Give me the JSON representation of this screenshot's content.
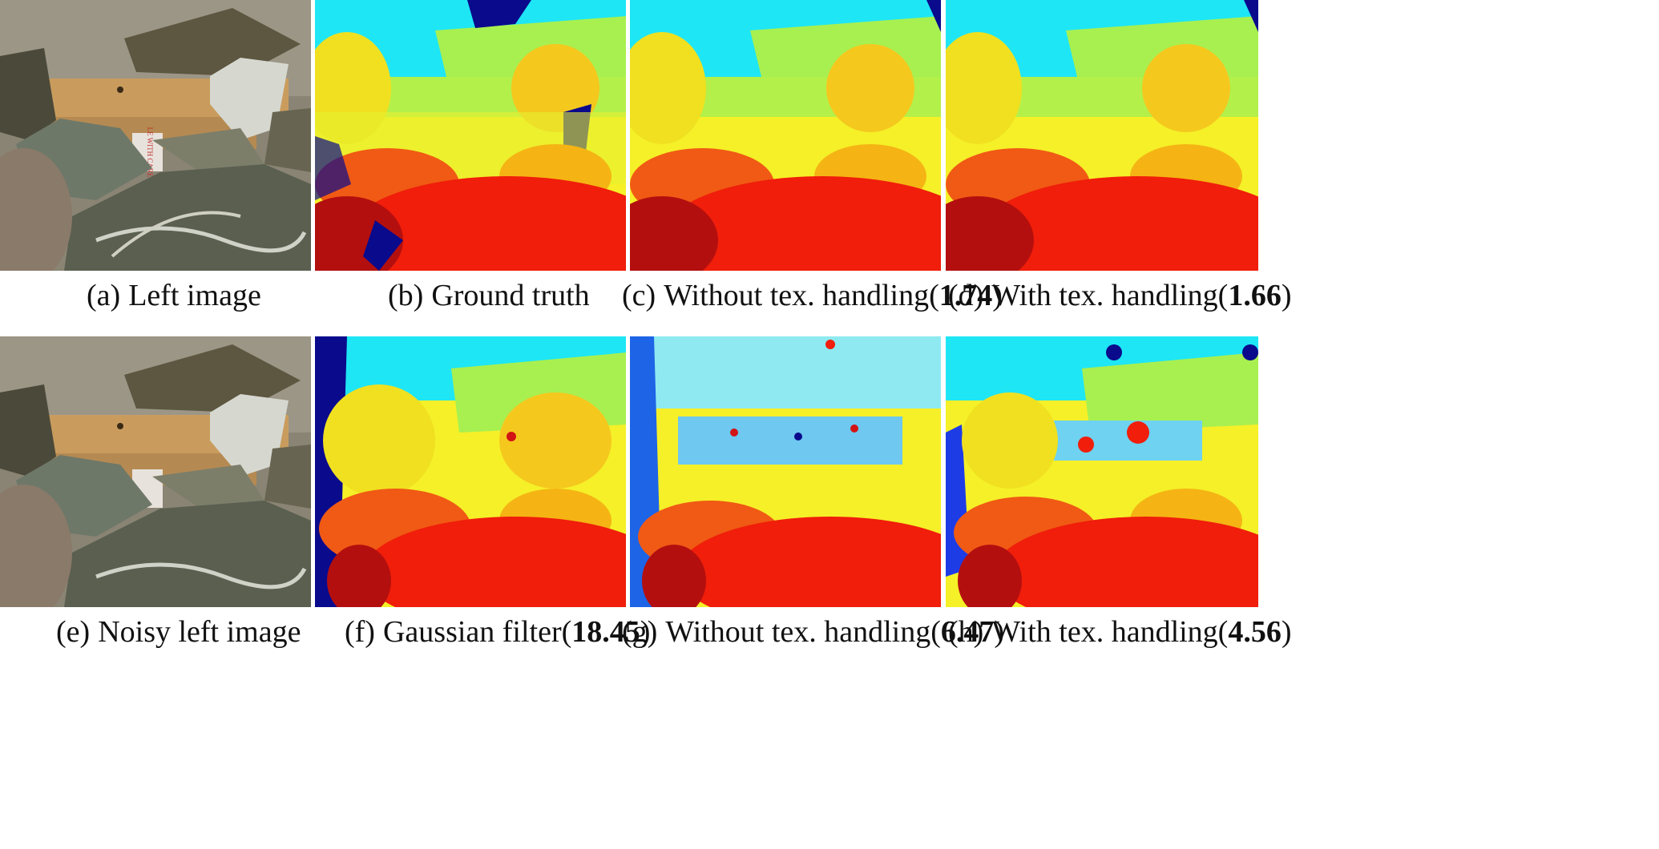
{
  "figure": {
    "panels": [
      {
        "id": "a",
        "label": "(a)",
        "title": "Left image",
        "score": ""
      },
      {
        "id": "b",
        "label": "(b)",
        "title": "Ground truth",
        "score": ""
      },
      {
        "id": "c",
        "label": "(c)",
        "title": "Without tex. handling(",
        "score": "1.74",
        "close": ")"
      },
      {
        "id": "d",
        "label": "(d)",
        "title": "With tex. handling(",
        "score": "1.66",
        "close": ")"
      },
      {
        "id": "e",
        "label": "(e)",
        "title": "Noisy left image",
        "score": ""
      },
      {
        "id": "f",
        "label": "(f)",
        "title": "Gaussian filter(",
        "score": "18.45",
        "close": ")"
      },
      {
        "id": "g",
        "label": "(g)",
        "title": "Without tex. handling(",
        "score": "6.47",
        "close": ")"
      },
      {
        "id": "h",
        "label": "(h)",
        "title": "With tex. handling(",
        "score": "4.56",
        "close": ")"
      }
    ],
    "box_label": "LE WITH CARE",
    "colors": {
      "jet_darkblue": "#0a0a8c",
      "jet_cyan": "#1ee6f5",
      "jet_green": "#a8f050",
      "jet_yellow": "#f5f028",
      "jet_orange": "#f5a014",
      "jet_red": "#f01e0a",
      "jet_darkred": "#b40f0f",
      "rock_dark": "#4a4a3a",
      "wood": "#c9a266",
      "background": "#8c7f68"
    }
  }
}
